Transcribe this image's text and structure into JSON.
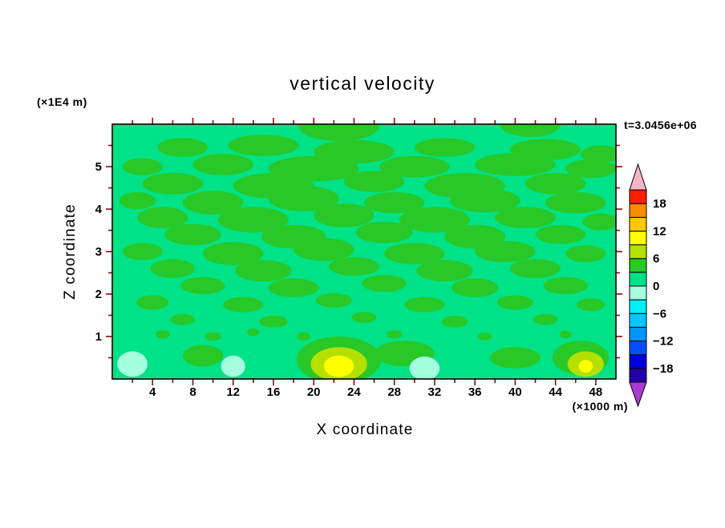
{
  "title": "vertical velocity",
  "time_label": "t=3.0456e+06",
  "axes": {
    "x": {
      "label": "X coordinate",
      "units": "(×1000 m)",
      "range": [
        0,
        50
      ],
      "major": [
        4,
        8,
        12,
        16,
        20,
        24,
        28,
        32,
        36,
        40,
        44,
        48
      ],
      "minor": [
        2,
        6,
        10,
        14,
        18,
        22,
        26,
        30,
        34,
        38,
        42,
        46
      ]
    },
    "y": {
      "label": "Z coordinate",
      "units": "(×1E4 m)",
      "range": [
        0,
        6
      ],
      "major": [
        1,
        2,
        3,
        4,
        5
      ],
      "minor": [
        0.5,
        1.5,
        2.5,
        3.5,
        4.5,
        5.5
      ]
    }
  },
  "colorbar": {
    "range": [
      -21,
      21
    ],
    "level_step": 3,
    "labels": [
      {
        "value": 18,
        "text": "18"
      },
      {
        "value": 12,
        "text": "12"
      },
      {
        "value": 6,
        "text": "6"
      },
      {
        "value": 0,
        "text": "0"
      },
      {
        "value": -6,
        "text": "−6"
      },
      {
        "value": -12,
        "text": "−12"
      },
      {
        "value": -18,
        "text": "−18"
      }
    ],
    "band_colors_bottom_to_top": [
      "#2400a8",
      "#0000dc",
      "#004eff",
      "#0096ff",
      "#00c8ff",
      "#00f0ff",
      "#a5ffdf",
      "#00e287",
      "#28c828",
      "#b4e000",
      "#ffff00",
      "#ffc800",
      "#ff8c00",
      "#ff1e00"
    ],
    "arrow_top_color": "#f2b6c6",
    "arrow_bottom_color": "#aa3ccd"
  },
  "chart_data": {
    "type": "heatmap",
    "subtype": "filled-contour",
    "title": "vertical velocity",
    "xlabel": "X coordinate (×1000 m)",
    "ylabel": "Z coordinate (×1E4 m)",
    "time_annotation": "t=3.0456e+06",
    "x_range": [
      0,
      50
    ],
    "z_range": [
      0,
      6
    ],
    "colorbar_ticks": [
      18,
      12,
      6,
      0,
      -6,
      -12,
      -18
    ],
    "contour_level_step": 3,
    "band_colors": {
      "background": "#00e287",
      "g": "#28c828",
      "a": "#a5ffdf",
      "yg": "#b4e000",
      "y": "#ffff00"
    },
    "band_value_ranges": {
      "background": "0 to 3",
      "g": "3 to 6",
      "a": "-3 to 0",
      "yg": "6 to 9",
      "y": "9 to 12"
    },
    "features_format": "[x, z, rx, rz, band] in data units; horizontal streaky contour regions",
    "features": [
      [
        22.5,
        5.95,
        4.0,
        0.35,
        "g"
      ],
      [
        41.5,
        6.0,
        3.0,
        0.3,
        "g"
      ],
      [
        7,
        5.45,
        2.5,
        0.22,
        "g"
      ],
      [
        15,
        5.5,
        3.5,
        0.25,
        "g"
      ],
      [
        24,
        5.35,
        4.0,
        0.28,
        "g"
      ],
      [
        33,
        5.45,
        3.0,
        0.22,
        "g"
      ],
      [
        43,
        5.4,
        3.5,
        0.25,
        "g"
      ],
      [
        48.5,
        5.3,
        2.0,
        0.2,
        "g"
      ],
      [
        3,
        5.0,
        2.0,
        0.2,
        "g"
      ],
      [
        11,
        5.05,
        3.0,
        0.25,
        "g"
      ],
      [
        20,
        4.95,
        4.5,
        0.3,
        "g"
      ],
      [
        30,
        5.0,
        3.5,
        0.25,
        "g"
      ],
      [
        40,
        5.05,
        4.0,
        0.27,
        "g"
      ],
      [
        47.5,
        4.95,
        2.5,
        0.22,
        "g"
      ],
      [
        6,
        4.6,
        3.0,
        0.25,
        "g"
      ],
      [
        16,
        4.55,
        4.0,
        0.3,
        "g"
      ],
      [
        26,
        4.65,
        3.0,
        0.25,
        "g"
      ],
      [
        35,
        4.55,
        4.0,
        0.3,
        "g"
      ],
      [
        44,
        4.6,
        3.0,
        0.25,
        "g"
      ],
      [
        2.5,
        4.2,
        1.8,
        0.2,
        "g"
      ],
      [
        10,
        4.15,
        3.0,
        0.28,
        "g"
      ],
      [
        19,
        4.25,
        3.5,
        0.3,
        "g"
      ],
      [
        28,
        4.15,
        3.0,
        0.25,
        "g"
      ],
      [
        37,
        4.2,
        3.5,
        0.28,
        "g"
      ],
      [
        46,
        4.15,
        3.0,
        0.25,
        "g"
      ],
      [
        5,
        3.8,
        2.5,
        0.25,
        "g"
      ],
      [
        14,
        3.75,
        3.5,
        0.3,
        "g"
      ],
      [
        23,
        3.85,
        3.0,
        0.28,
        "g"
      ],
      [
        32,
        3.75,
        3.5,
        0.3,
        "g"
      ],
      [
        41,
        3.8,
        3.0,
        0.25,
        "g"
      ],
      [
        48.5,
        3.7,
        1.8,
        0.2,
        "g"
      ],
      [
        8,
        3.4,
        2.8,
        0.25,
        "g"
      ],
      [
        18,
        3.35,
        3.2,
        0.28,
        "g"
      ],
      [
        27,
        3.45,
        2.8,
        0.25,
        "g"
      ],
      [
        36,
        3.35,
        3.0,
        0.28,
        "g"
      ],
      [
        44.5,
        3.4,
        2.5,
        0.22,
        "g"
      ],
      [
        3,
        3.0,
        2.0,
        0.2,
        "g"
      ],
      [
        12,
        2.95,
        3.0,
        0.27,
        "g"
      ],
      [
        21,
        3.05,
        3.0,
        0.27,
        "g"
      ],
      [
        30,
        2.95,
        3.0,
        0.25,
        "g"
      ],
      [
        39,
        3.0,
        3.0,
        0.25,
        "g"
      ],
      [
        47,
        2.95,
        2.0,
        0.2,
        "g"
      ],
      [
        6,
        2.6,
        2.2,
        0.22,
        "g"
      ],
      [
        15,
        2.55,
        2.8,
        0.25,
        "g"
      ],
      [
        24,
        2.65,
        2.5,
        0.22,
        "g"
      ],
      [
        33,
        2.55,
        2.8,
        0.25,
        "g"
      ],
      [
        42,
        2.6,
        2.5,
        0.22,
        "g"
      ],
      [
        9,
        2.2,
        2.2,
        0.2,
        "g"
      ],
      [
        18,
        2.15,
        2.5,
        0.22,
        "g"
      ],
      [
        27,
        2.25,
        2.2,
        0.2,
        "g"
      ],
      [
        36,
        2.15,
        2.3,
        0.22,
        "g"
      ],
      [
        45,
        2.2,
        2.2,
        0.2,
        "g"
      ],
      [
        4,
        1.8,
        1.6,
        0.17,
        "g"
      ],
      [
        13,
        1.75,
        2.0,
        0.18,
        "g"
      ],
      [
        22,
        1.85,
        1.8,
        0.17,
        "g"
      ],
      [
        31,
        1.75,
        2.0,
        0.18,
        "g"
      ],
      [
        40,
        1.8,
        1.8,
        0.17,
        "g"
      ],
      [
        47.5,
        1.75,
        1.4,
        0.15,
        "g"
      ],
      [
        7,
        1.4,
        1.2,
        0.13,
        "g"
      ],
      [
        16,
        1.35,
        1.4,
        0.14,
        "g"
      ],
      [
        25,
        1.45,
        1.2,
        0.13,
        "g"
      ],
      [
        34,
        1.35,
        1.3,
        0.14,
        "g"
      ],
      [
        43,
        1.4,
        1.2,
        0.13,
        "g"
      ],
      [
        5,
        1.05,
        0.7,
        0.1,
        "g"
      ],
      [
        10,
        1.0,
        0.8,
        0.1,
        "g"
      ],
      [
        14,
        1.1,
        0.6,
        0.09,
        "g"
      ],
      [
        19,
        1.0,
        0.7,
        0.1,
        "g"
      ],
      [
        28,
        1.05,
        0.8,
        0.1,
        "g"
      ],
      [
        37,
        1.0,
        0.7,
        0.09,
        "g"
      ],
      [
        45,
        1.05,
        0.6,
        0.09,
        "g"
      ],
      [
        9,
        0.55,
        2.0,
        0.25,
        "g"
      ],
      [
        29,
        0.6,
        3.0,
        0.3,
        "g"
      ],
      [
        40,
        0.5,
        2.5,
        0.25,
        "g"
      ],
      [
        46.5,
        0.5,
        2.8,
        0.4,
        "g"
      ],
      [
        22.5,
        0.45,
        4.2,
        0.55,
        "g"
      ],
      [
        2,
        0.35,
        1.5,
        0.3,
        "a"
      ],
      [
        12,
        0.3,
        1.2,
        0.25,
        "a"
      ],
      [
        31,
        0.25,
        1.5,
        0.28,
        "a"
      ],
      [
        22.5,
        0.35,
        2.8,
        0.4,
        "yg"
      ],
      [
        22.5,
        0.3,
        1.5,
        0.25,
        "y"
      ],
      [
        47,
        0.35,
        1.8,
        0.3,
        "yg"
      ],
      [
        47,
        0.3,
        0.7,
        0.15,
        "y"
      ]
    ]
  },
  "colors": {
    "tick": "#a00000",
    "frame": "#000000",
    "text": "#000000",
    "page_background": "#ffffff"
  }
}
